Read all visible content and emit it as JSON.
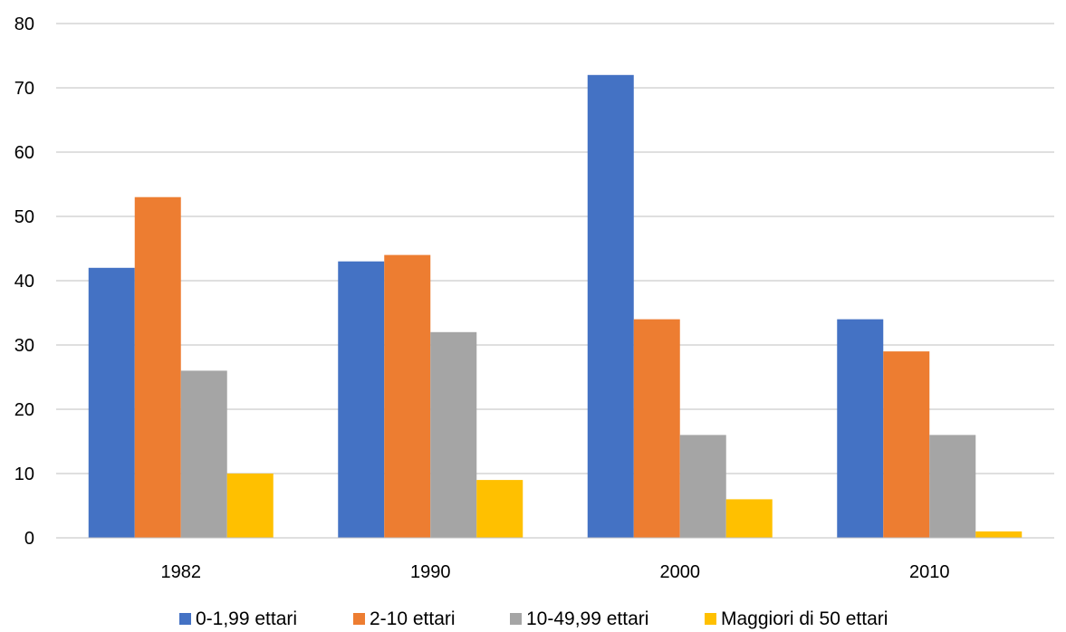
{
  "chart_data": {
    "type": "bar",
    "title": "",
    "xlabel": "",
    "ylabel": "",
    "categories": [
      "1982",
      "1990",
      "2000",
      "2010"
    ],
    "ylim": [
      0,
      80
    ],
    "yticks": [
      "0",
      "10",
      "20",
      "30",
      "40",
      "50",
      "60",
      "70",
      "80"
    ],
    "grid": true,
    "legend_position": "bottom",
    "series": [
      {
        "name": "0-1,99 ettari",
        "color": "#4472C4",
        "values": [
          42,
          43,
          72,
          34
        ]
      },
      {
        "name": "2-10 ettari",
        "color": "#ED7D31",
        "values": [
          53,
          44,
          34,
          29
        ]
      },
      {
        "name": "10-49,99 ettari",
        "color": "#A5A5A5",
        "values": [
          26,
          32,
          16,
          16
        ]
      },
      {
        "name": "Maggiori di 50 ettari",
        "color": "#FFC000",
        "values": [
          10,
          9,
          6,
          1
        ]
      }
    ]
  }
}
